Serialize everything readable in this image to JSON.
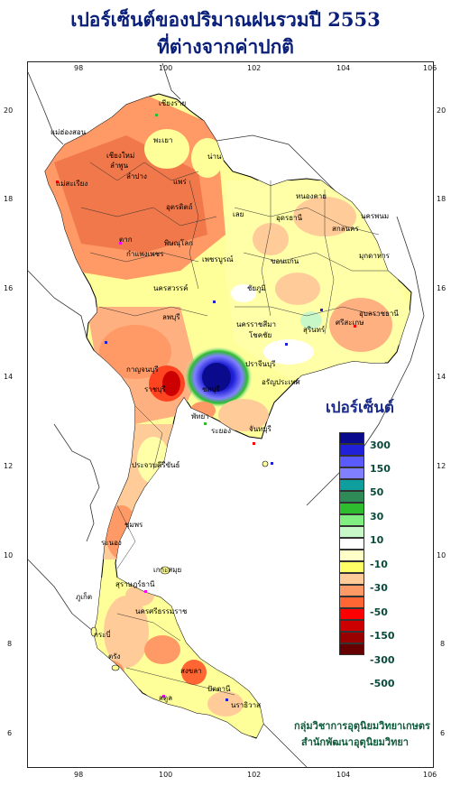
{
  "title": {
    "line1": "เปอร์เซ็นต์ของปริมาณฝนรวมปี  2553",
    "line2": "ที่ต่างจากค่าปกติ"
  },
  "axes": {
    "x_ticks": [
      "98",
      "100",
      "102",
      "104",
      "106"
    ],
    "y_ticks": [
      "20",
      "18",
      "16",
      "14",
      "12",
      "10",
      "8",
      "6"
    ]
  },
  "legend": {
    "title": "เปอร์เซ็นต์",
    "labels": [
      "300",
      "150",
      "50",
      "30",
      "10",
      "-10",
      "-30",
      "-50",
      "-150",
      "-300",
      "-500"
    ],
    "colors": [
      "#0a0a8c",
      "#2020d8",
      "#5a5aff",
      "#8080ff",
      "#0f9e9e",
      "#2e8b57",
      "#2ebd2e",
      "#80ee80",
      "#c8f8c8",
      "#ffffff",
      "#ffffc8",
      "#ffff66",
      "#ffcc99",
      "#ff9966",
      "#ff6633",
      "#ff0000",
      "#cc0000",
      "#990000",
      "#660000"
    ]
  },
  "credit": {
    "line1": "กลุ่มวิชาการอุตุนิยมวิทยาเกษตร",
    "line2": "สำนักพัฒนาอุตุนิยมวิทยา"
  },
  "places": [
    "เชียงราย",
    "แม่ฮ่องสอน",
    "พะเยา",
    "เชียงใหม่",
    "ลำพูน",
    "น่าน",
    "ลำปาง",
    "แพร่",
    "แม่สะเรียง",
    "อุตรดิตถ์",
    "ตาก",
    "พิษณุโลก",
    "เลย",
    "หนองคาย",
    "อุดรธานี",
    "นครพนม",
    "สกลนคร",
    "มุกดาหาร",
    "กำแพงเพชร",
    "เพชรบูรณ์",
    "ขอนแก่น",
    "นครสวรรค์",
    "ชัยภูมิ",
    "อุบลราชธานี",
    "ลพบุรี",
    "ศรีสะเกษ",
    "นครราชสีมา",
    "โชคชัย",
    "สุรินทร์",
    "กาญจนบุรี",
    "ปราจีนบุรี",
    "อรัญประเทศ",
    "ราชบุรี",
    "ชลบุรี",
    "พัทยา",
    "ระยอง",
    "จันทบุรี",
    "ประจวบคีรีขันธ์",
    "ชุมพร",
    "เกาะสมุย",
    "สุราษฎร์ธานี",
    "ภูเก็ต",
    "นครศรีธรรมราช",
    "กระบี่",
    "ตรัง",
    "สงขลา",
    "สตูล",
    "ปัตตานี",
    "นราธิวาส",
    "ระนอง"
  ]
}
